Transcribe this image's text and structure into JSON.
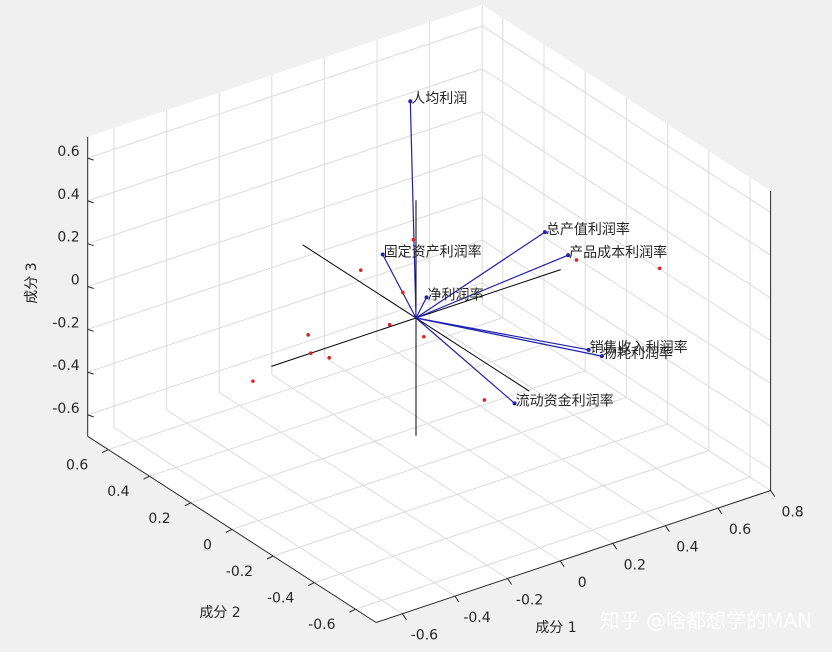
{
  "chart_data": {
    "type": "biplot3d",
    "xlabel": "成分 1",
    "ylabel": "成分 2",
    "zlabel": "成分 3",
    "xlim": [
      -0.7,
      0.8
    ],
    "ylim": [
      -0.7,
      0.7
    ],
    "zlim": [
      -0.7,
      0.7
    ],
    "xticks": [
      -0.6,
      -0.4,
      -0.2,
      0,
      0.2,
      0.4,
      0.6,
      0.8
    ],
    "yticks": [
      -0.6,
      -0.4,
      -0.2,
      0,
      0.2,
      0.4,
      0.6
    ],
    "zticks": [
      -0.6,
      -0.4,
      -0.2,
      0,
      0.2,
      0.4,
      0.6
    ],
    "grid": true,
    "vector_color": "#1f1fb0",
    "point_color": "#e02020",
    "vectors": [
      {
        "name": "人均利润",
        "x": 0.37,
        "y": 0.5,
        "z": 0.55
      },
      {
        "name": "总产值利润率",
        "x": 0.49,
        "y": 0,
        "z": 0.2
      },
      {
        "name": "产品成本利润率",
        "x": 0.5,
        "y": -0.1,
        "z": 0.15
      },
      {
        "name": "固定资产利润率",
        "x": 0.03,
        "y": 0.2,
        "z": 0.16
      },
      {
        "name": "净利润率",
        "x": 0.04,
        "y": 0,
        "z": 0.08
      },
      {
        "name": "销售收入利润率",
        "x": 0.5,
        "y": -0.2,
        "z": -0.23
      },
      {
        "name": "物耗利润率",
        "x": 0.55,
        "y": -0.2,
        "z": -0.28
      },
      {
        "name": "流动资金利润率",
        "x": 0.14,
        "y": -0.3,
        "z": -0.27
      }
    ],
    "scores": {
      "x": [
        -0.01,
        -0.21,
        -0.05,
        -0.1,
        0.03,
        -0.41,
        -0.4,
        -0.33,
        -0.62,
        0.26,
        0.61,
        0.77
      ],
      "y": [
        0,
        0,
        0,
        0,
        0,
        0,
        0,
        0,
        0,
        0,
        0,
        -0.2
      ],
      "z": [
        0.37,
        0.31,
        0.14,
        0.01,
        -0.1,
        0.09,
        0,
        -0.05,
        -0.04,
        -0.49,
        0.02,
        0.04
      ]
    },
    "watermark": "知乎 @啥都想学的MAN"
  }
}
